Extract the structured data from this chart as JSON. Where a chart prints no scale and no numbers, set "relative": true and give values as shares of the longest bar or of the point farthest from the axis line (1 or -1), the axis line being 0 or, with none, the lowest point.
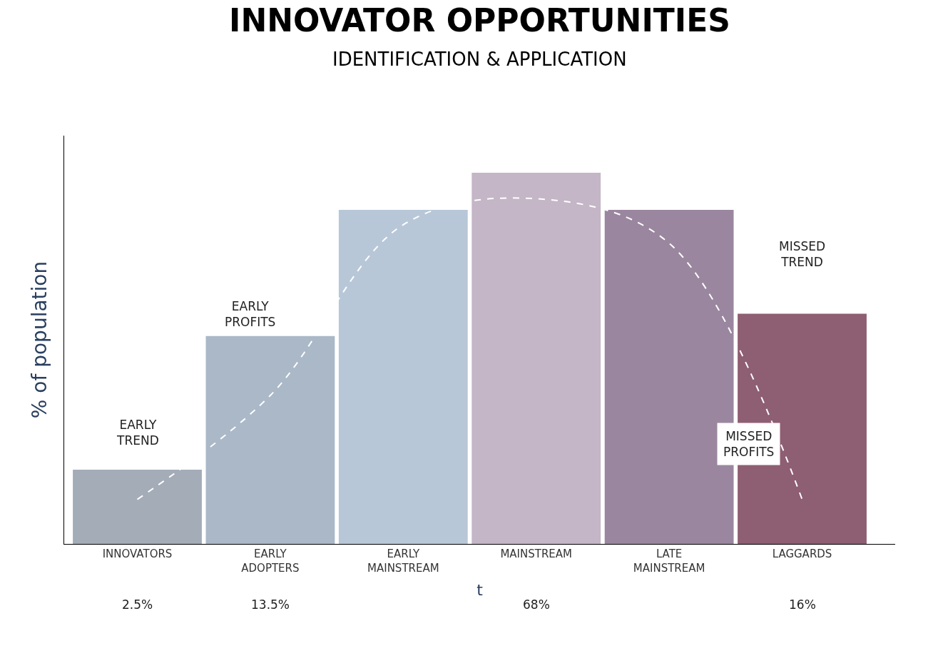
{
  "chart_data": {
    "type": "bar",
    "title": "INNOVATOR OPPORTUNITIES",
    "subtitle": "IDENTIFICATION & APPLICATION",
    "ylabel": "% of population",
    "xlabel": "t",
    "relative": true,
    "categories": [
      "INNOVATORS",
      "EARLY\nADOPTERS",
      "EARLY\nMAINSTREAM",
      "MAINSTREAM",
      "LATE\nMAINSTREAM",
      "LAGGARDS"
    ],
    "series": [
      {
        "values": [
          0.2,
          0.56,
          0.9,
          1,
          0.9,
          0.62
        ],
        "colors": [
          "#a3acb7",
          "#aab8c8",
          "#b8c7d8",
          "#c4b6c6",
          "#9a879f",
          "#8e5e72"
        ]
      },
      {
        "type": "line",
        "color": "#ffffff",
        "line_style": "dashed",
        "values": [
          0.12,
          0.4,
          0.86,
          0.93,
          0.81,
          0.12
        ]
      }
    ],
    "annotations": [
      "EARLY\nTREND",
      "EARLY\nPROFITS",
      "MISSED\nPROFITS",
      "MISSED\nTREND",
      "2.5%",
      "13.5%",
      "68%",
      "16%"
    ]
  }
}
